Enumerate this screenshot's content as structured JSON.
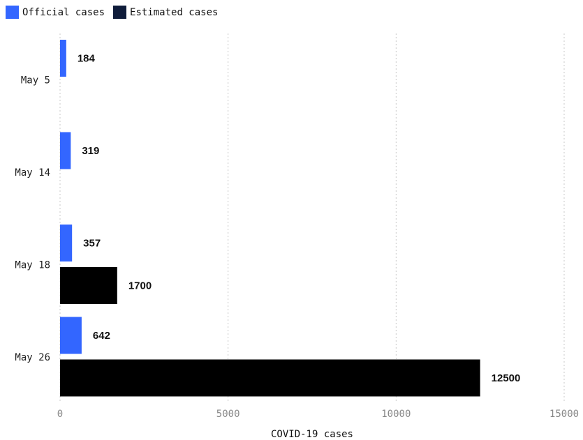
{
  "chart_data": {
    "type": "bar",
    "orientation": "horizontal",
    "categories": [
      "May 5",
      "May 14",
      "May 18",
      "May 26"
    ],
    "series": [
      {
        "name": "Official cases",
        "color": "#3366ff",
        "values": [
          184,
          319,
          357,
          642
        ]
      },
      {
        "name": "Estimated cases",
        "color": "#000000",
        "legend_color": "#0f1c3a",
        "values": [
          null,
          null,
          1700,
          12500
        ]
      }
    ],
    "xlabel": "COVID-19 cases",
    "ylabel": "",
    "xlim": [
      0,
      15000
    ],
    "xticks": [
      "0",
      "5000",
      "10000",
      "15000"
    ],
    "grid": "vertical dashed",
    "legend_position": "top-left"
  }
}
